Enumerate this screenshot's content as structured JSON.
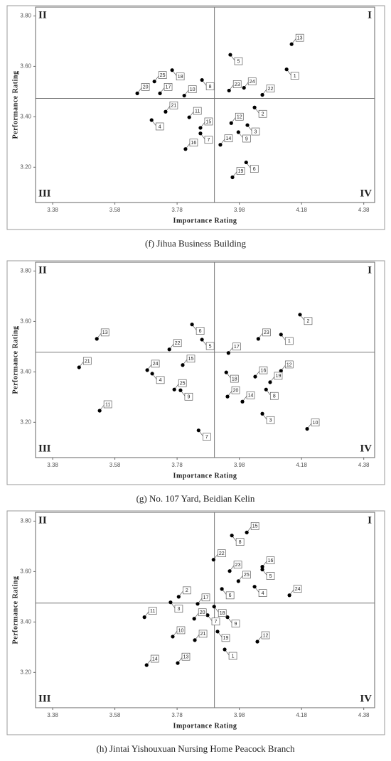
{
  "chart_data": [
    {
      "type": "scatter",
      "caption": "(f) Jihua Business Building",
      "x_label": "Importance Rating",
      "y_label": "Performance Rating",
      "quadrant_labels": [
        "I",
        "II",
        "III",
        "IV"
      ],
      "xlim": [
        3.325,
        4.415
      ],
      "ylim": [
        3.06,
        3.835
      ],
      "xticks": [
        3.38,
        3.58,
        3.78,
        3.98,
        4.18,
        4.38
      ],
      "yticks": [
        {
          "value": 3.2,
          "label": "3.20"
        },
        {
          "value": 3.4,
          "label": "3.40"
        },
        {
          "value": 3.6,
          "label": "3.60"
        },
        {
          "value": 3.8,
          "label": "3.80"
        }
      ],
      "reference_x": 3.9,
      "reference_y": 3.473,
      "color": "#000000",
      "labels": [
        "1",
        "2",
        "3",
        "4",
        "5",
        "6",
        "7",
        "8",
        "9",
        "10",
        "11",
        "12",
        "13",
        "14",
        "15",
        "16",
        "17",
        "18",
        "19",
        "20",
        "21",
        "22",
        "23",
        "24",
        "25"
      ],
      "x": [
        4.132,
        4.029,
        4.006,
        3.698,
        3.951,
        4.002,
        3.855,
        3.86,
        3.977,
        3.803,
        3.819,
        3.954,
        4.148,
        3.919,
        3.855,
        3.807,
        3.725,
        3.764,
        3.958,
        3.652,
        3.743,
        4.054,
        3.947,
        3.995,
        3.707
      ],
      "y": [
        3.588,
        3.437,
        3.367,
        3.387,
        3.646,
        3.219,
        3.334,
        3.546,
        3.339,
        3.484,
        3.398,
        3.375,
        3.688,
        3.289,
        3.356,
        3.272,
        3.493,
        3.585,
        3.16,
        3.493,
        3.42,
        3.487,
        3.504,
        3.515,
        3.54
      ]
    },
    {
      "type": "scatter",
      "caption": "(g) No. 107 Yard, Beidian Kelin",
      "x_label": "Importance Rating",
      "y_label": "Performance Rating",
      "quadrant_labels": [
        "I",
        "II",
        "III",
        "IV"
      ],
      "xlim": [
        3.325,
        4.415
      ],
      "ylim": [
        3.06,
        3.835
      ],
      "xticks": [
        3.38,
        3.58,
        3.78,
        3.98,
        4.18,
        4.38
      ],
      "yticks": [
        {
          "value": 3.2,
          "label": "3.20"
        },
        {
          "value": 3.4,
          "label": "3.40"
        },
        {
          "value": 3.6,
          "label": "3.60"
        },
        {
          "value": 3.8,
          "label": "3.80"
        }
      ],
      "reference_x": 3.9,
      "reference_y": 3.478,
      "color": "#000000",
      "labels": [
        "1",
        "2",
        "3",
        "4",
        "5",
        "6",
        "7",
        "8",
        "9",
        "10",
        "11",
        "12",
        "13",
        "14",
        "15",
        "16",
        "17",
        "18",
        "19",
        "20",
        "21",
        "22",
        "23",
        "24",
        "25"
      ],
      "x": [
        4.114,
        4.175,
        4.054,
        3.7,
        3.86,
        3.828,
        3.849,
        4.066,
        3.791,
        4.198,
        3.531,
        4.114,
        3.522,
        3.99,
        3.798,
        4.031,
        3.945,
        3.938,
        4.079,
        3.942,
        3.465,
        3.755,
        4.041,
        3.684,
        3.771
      ],
      "y": [
        3.548,
        3.627,
        3.234,
        3.393,
        3.528,
        3.588,
        3.168,
        3.33,
        3.327,
        3.174,
        3.246,
        3.404,
        3.531,
        3.282,
        3.427,
        3.381,
        3.475,
        3.398,
        3.359,
        3.302,
        3.418,
        3.489,
        3.531,
        3.407,
        3.33
      ]
    },
    {
      "type": "scatter",
      "caption": "(h) Jintai Yishouxuan Nursing Home Peacock Branch",
      "x_label": "Importance Rating",
      "y_label": "Performance Rating",
      "quadrant_labels": [
        "I",
        "II",
        "III",
        "IV"
      ],
      "xlim": [
        3.325,
        4.415
      ],
      "ylim": [
        3.06,
        3.835
      ],
      "xticks": [
        3.38,
        3.58,
        3.78,
        3.98,
        4.18,
        4.38
      ],
      "yticks": [
        {
          "value": 3.2,
          "label": "3.20"
        },
        {
          "value": 3.4,
          "label": "3.40"
        },
        {
          "value": 3.6,
          "label": "3.60"
        },
        {
          "value": 3.8,
          "label": "3.80"
        }
      ],
      "reference_x": 3.9,
      "reference_y": 3.475,
      "color": "#000000",
      "labels": [
        "1",
        "2",
        "3",
        "4",
        "5",
        "6",
        "7",
        "8",
        "9",
        "10",
        "11",
        "12",
        "13",
        "14",
        "15",
        "16",
        "17",
        "18",
        "19",
        "20",
        "21",
        "22",
        "23",
        "24",
        "25"
      ],
      "x": [
        3.933,
        3.785,
        3.759,
        4.029,
        4.054,
        3.924,
        3.878,
        3.956,
        3.942,
        3.766,
        3.675,
        4.038,
        3.782,
        3.682,
        4.004,
        4.054,
        3.846,
        3.899,
        3.91,
        3.835,
        3.837,
        3.897,
        3.949,
        4.141,
        3.977
      ],
      "y": [
        3.291,
        3.5,
        3.478,
        3.54,
        3.608,
        3.531,
        3.427,
        3.743,
        3.419,
        3.342,
        3.419,
        3.322,
        3.237,
        3.229,
        3.755,
        3.619,
        3.472,
        3.461,
        3.362,
        3.413,
        3.328,
        3.647,
        3.602,
        3.506,
        3.562
      ]
    }
  ]
}
